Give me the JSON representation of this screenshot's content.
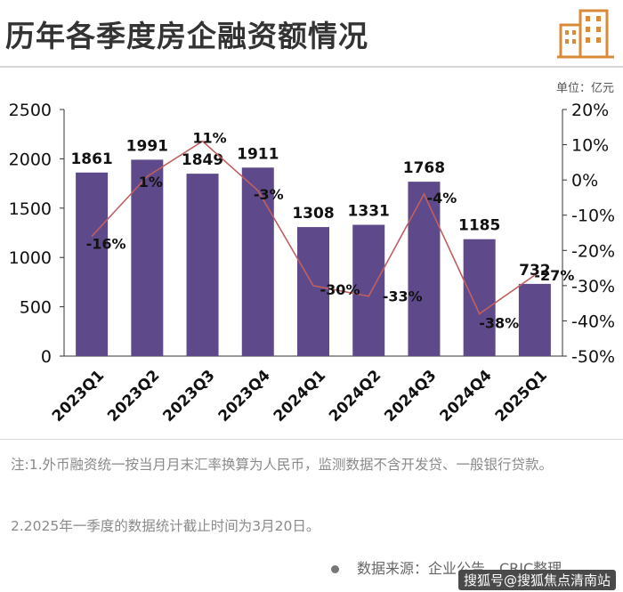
{
  "header": {
    "title": "历年各季度房企融资额情况",
    "unit_label": "单位：亿元"
  },
  "colors": {
    "bar": "#5e4a8a",
    "line": "#c15f5f",
    "accent": "#d98b3a"
  },
  "chart_data": {
    "type": "bar",
    "categories": [
      "2023Q1",
      "2023Q2",
      "2023Q3",
      "2023Q4",
      "2024Q1",
      "2024Q2",
      "2024Q3",
      "2024Q4",
      "2025Q1"
    ],
    "series": [
      {
        "type": "bar",
        "axis": "left",
        "values": [
          1861,
          1991,
          1849,
          1911,
          1308,
          1331,
          1768,
          1185,
          732
        ]
      },
      {
        "type": "line",
        "axis": "right",
        "values": [
          -16,
          1,
          11,
          -3,
          -30,
          -33,
          -4,
          -38,
          -27
        ],
        "labels": [
          "-16%",
          "1%",
          "11%",
          "-3%",
          "-30%",
          "-33%",
          "-4%",
          "-38%",
          "-27%"
        ]
      }
    ],
    "y_left": {
      "min": 0,
      "max": 2500,
      "ticks": [
        0,
        500,
        1000,
        1500,
        2000,
        2500
      ]
    },
    "y_right": {
      "min": -50,
      "max": 20,
      "ticks": [
        "20%",
        "10%",
        "0%",
        "-10%",
        "-20%",
        "-30%",
        "-40%",
        "-50%"
      ]
    },
    "grid": false
  },
  "notes": [
    "注:1.外币融资统一按当月月末汇率换算为人民币，监测数据不含开发贷、一般银行贷款。",
    "2.2025年一季度的数据统计截止时间为3月20日。"
  ],
  "source": "数据来源：企业公告，CRIC整理",
  "watermark": "搜狐号@搜狐焦点清南站"
}
